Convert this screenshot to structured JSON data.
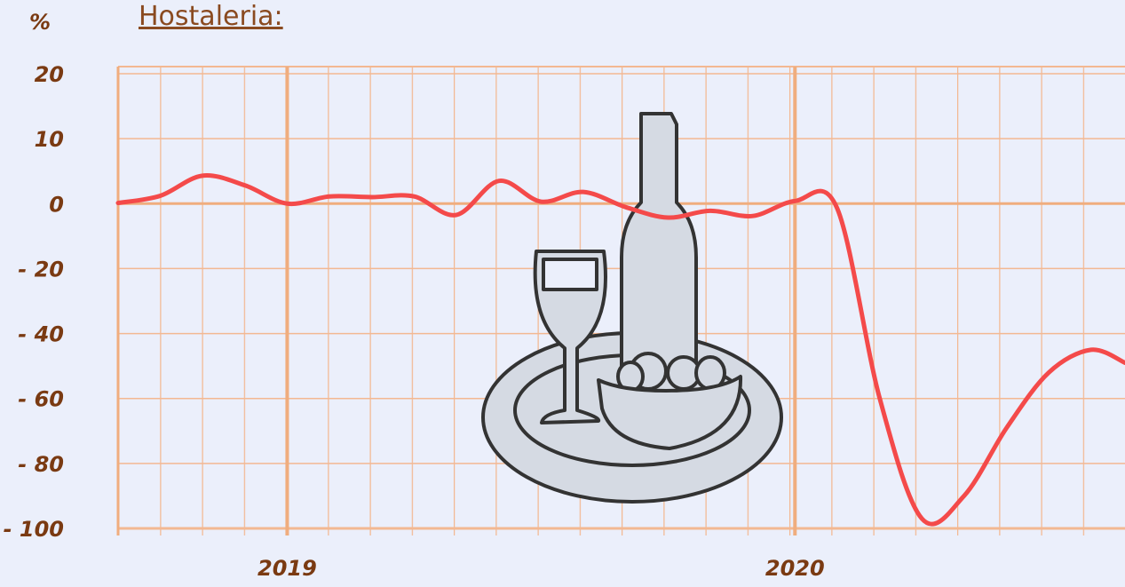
{
  "chart_data": {
    "type": "line",
    "title": "Hostaleria:",
    "y_label": "%",
    "x": [
      2018.667,
      2018.75,
      2018.833,
      2018.917,
      2019,
      2019.083,
      2019.167,
      2019.25,
      2019.333,
      2019.417,
      2019.5,
      2019.583,
      2019.667,
      2019.75,
      2019.833,
      2019.917,
      2020,
      2020.083,
      2020.167,
      2020.25,
      2020.333,
      2020.417,
      2020.5,
      2020.583,
      2020.65
    ],
    "values": [
      0.1,
      1.2,
      4.3,
      2.8,
      0,
      1.1,
      1,
      1.1,
      -3.5,
      3.5,
      0.3,
      1.8,
      -1.1,
      -4.3,
      -2.2,
      -3.8,
      0.4,
      -1.4,
      -60,
      -97,
      -90,
      -69,
      -52,
      -45,
      -49
    ],
    "color": "#f44a4a",
    "xlim": [
      2018.667,
      2020.65
    ],
    "xticks": [
      2019,
      2020
    ],
    "ylim": [
      -100,
      20
    ],
    "yticks": [
      20,
      10,
      0,
      {
        "value": -20,
        "label": "- 20"
      },
      {
        "value": -40,
        "label": "- 40"
      },
      {
        "value": -60,
        "label": "- 60"
      },
      {
        "value": -80,
        "label": "- 80"
      },
      {
        "value": -100,
        "label": "- 100"
      }
    ],
    "grid": true
  }
}
